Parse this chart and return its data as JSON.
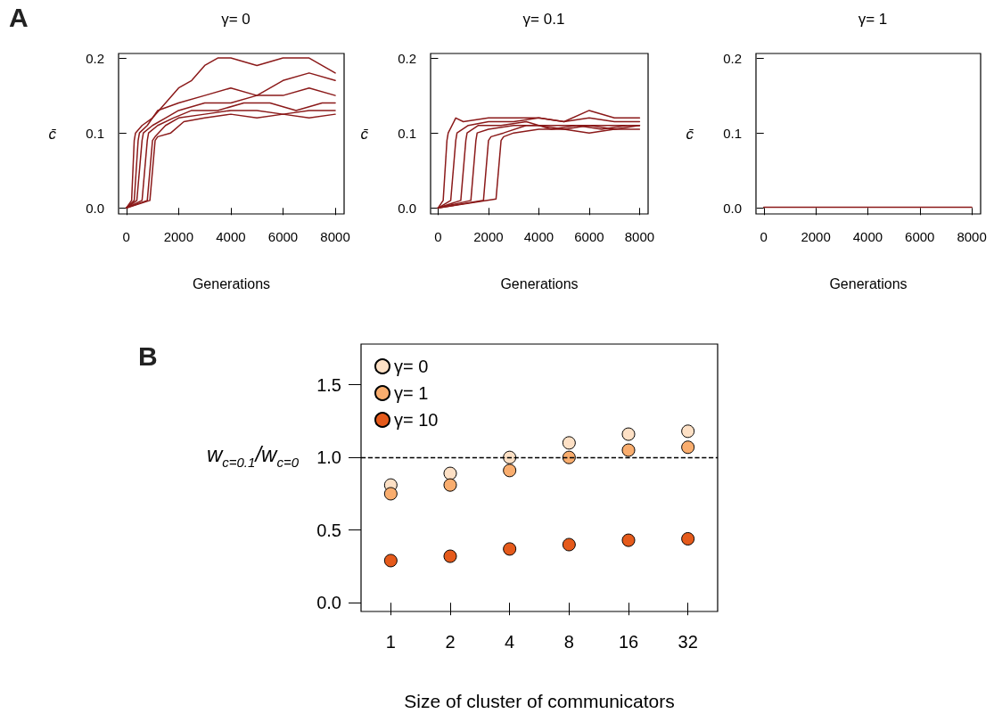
{
  "chart_data": [
    {
      "type": "line",
      "title": "γ= 0",
      "xlabel": "Generations",
      "ylabel": "c̄",
      "annotations": [
        "A"
      ],
      "marker": "none",
      "legend": false,
      "xlim": [
        -300,
        8340
      ],
      "xticks": [
        0,
        2000,
        4000,
        6000,
        8000
      ],
      "ylim": [
        -0.008,
        0.206
      ],
      "yticks": [
        {
          "value": 0,
          "label": "0.0"
        },
        {
          "value": 0.1,
          "label": "0.1"
        },
        {
          "value": 0.2,
          "label": "0.2"
        }
      ],
      "series": [
        {
          "color": "#8b1a1a",
          "x": [
            0,
            200,
            300,
            350,
            600,
            1000,
            1500,
            2000,
            2500,
            3000,
            3500,
            4000,
            5000,
            6000,
            7000,
            8000
          ],
          "values": [
            0,
            0.01,
            0.09,
            0.1,
            0.11,
            0.12,
            0.14,
            0.16,
            0.17,
            0.19,
            0.2,
            0.2,
            0.19,
            0.2,
            0.2,
            0.18
          ]
        },
        {
          "color": "#8b1a1a",
          "x": [
            0,
            300,
            450,
            500,
            800,
            1200,
            2000,
            3000,
            4000,
            5000,
            6000,
            7000,
            8000
          ],
          "values": [
            0,
            0.01,
            0.09,
            0.1,
            0.11,
            0.13,
            0.14,
            0.15,
            0.16,
            0.15,
            0.17,
            0.18,
            0.17
          ]
        },
        {
          "color": "#8b1a1a",
          "x": [
            0,
            400,
            600,
            650,
            1000,
            1500,
            2000,
            3000,
            4000,
            5000,
            6000,
            7000,
            8000
          ],
          "values": [
            0,
            0.01,
            0.09,
            0.1,
            0.11,
            0.12,
            0.13,
            0.14,
            0.14,
            0.15,
            0.15,
            0.16,
            0.15
          ]
        },
        {
          "color": "#8b1a1a",
          "x": [
            0,
            600,
            800,
            850,
            1200,
            1800,
            2500,
            3500,
            4500,
            5500,
            6500,
            7500,
            8000
          ],
          "values": [
            0,
            0.01,
            0.09,
            0.1,
            0.11,
            0.12,
            0.13,
            0.13,
            0.14,
            0.14,
            0.13,
            0.14,
            0.14
          ]
        },
        {
          "color": "#8b1a1a",
          "x": [
            0,
            800,
            1000,
            1100,
            1500,
            2000,
            3000,
            4000,
            5000,
            6000,
            7000,
            8000
          ],
          "values": [
            0,
            0.01,
            0.09,
            0.095,
            0.11,
            0.12,
            0.125,
            0.13,
            0.13,
            0.125,
            0.13,
            0.13
          ]
        },
        {
          "color": "#8b1a1a",
          "x": [
            0,
            900,
            1100,
            1200,
            1700,
            2200,
            3000,
            4000,
            5000,
            6000,
            7000,
            8000
          ],
          "values": [
            0,
            0.01,
            0.09,
            0.095,
            0.1,
            0.115,
            0.12,
            0.125,
            0.12,
            0.125,
            0.12,
            0.125
          ]
        }
      ]
    },
    {
      "type": "line",
      "title": "γ= 0.1",
      "xlabel": "Generations",
      "ylabel": "c̄",
      "marker": "none",
      "legend": false,
      "xlim": [
        -300,
        8340
      ],
      "xticks": [
        0,
        2000,
        4000,
        6000,
        8000
      ],
      "ylim": [
        -0.008,
        0.206
      ],
      "yticks": [
        {
          "value": 0,
          "label": "0.0"
        },
        {
          "value": 0.1,
          "label": "0.1"
        },
        {
          "value": 0.2,
          "label": "0.2"
        }
      ],
      "series": [
        {
          "color": "#8b1a1a",
          "x": [
            0,
            200,
            350,
            400,
            700,
            1000,
            2000,
            3000,
            4000,
            5000,
            6000,
            7000,
            8000
          ],
          "values": [
            0,
            0.01,
            0.09,
            0.1,
            0.12,
            0.115,
            0.12,
            0.12,
            0.12,
            0.115,
            0.13,
            0.12,
            0.12
          ]
        },
        {
          "color": "#8b1a1a",
          "x": [
            0,
            500,
            700,
            750,
            1200,
            2000,
            3000,
            4000,
            5000,
            6000,
            7000,
            8000
          ],
          "values": [
            0,
            0.01,
            0.09,
            0.1,
            0.11,
            0.115,
            0.115,
            0.12,
            0.115,
            0.12,
            0.115,
            0.115
          ]
        },
        {
          "color": "#8b1a1a",
          "x": [
            0,
            900,
            1100,
            1150,
            1600,
            2500,
            3500,
            4500,
            5500,
            6500,
            7500,
            8000
          ],
          "values": [
            0,
            0.01,
            0.09,
            0.1,
            0.11,
            0.11,
            0.115,
            0.105,
            0.11,
            0.11,
            0.11,
            0.11
          ]
        },
        {
          "color": "#8b1a1a",
          "x": [
            0,
            1300,
            1500,
            1550,
            2000,
            3000,
            4000,
            5000,
            6000,
            7000,
            8000
          ],
          "values": [
            0,
            0.01,
            0.09,
            0.1,
            0.105,
            0.11,
            0.11,
            0.105,
            0.11,
            0.105,
            0.11
          ]
        },
        {
          "color": "#8b1a1a",
          "x": [
            0,
            1800,
            2000,
            2100,
            2600,
            3500,
            4500,
            5500,
            6500,
            7500,
            8000
          ],
          "values": [
            0,
            0.01,
            0.09,
            0.095,
            0.1,
            0.11,
            0.11,
            0.11,
            0.105,
            0.11,
            0.11
          ]
        },
        {
          "color": "#8b1a1a",
          "x": [
            0,
            2300,
            2500,
            2600,
            3000,
            4000,
            5000,
            6000,
            7000,
            8000
          ],
          "values": [
            0,
            0.012,
            0.09,
            0.095,
            0.1,
            0.105,
            0.105,
            0.1,
            0.105,
            0.105
          ]
        }
      ]
    },
    {
      "type": "line",
      "title": "γ= 1",
      "xlabel": "Generations",
      "ylabel": "c̄",
      "marker": "none",
      "legend": false,
      "xlim": [
        -300,
        8340
      ],
      "xticks": [
        0,
        2000,
        4000,
        6000,
        8000
      ],
      "ylim": [
        -0.008,
        0.206
      ],
      "yticks": [
        {
          "value": 0,
          "label": "0.0"
        },
        {
          "value": 0.1,
          "label": "0.1"
        },
        {
          "value": 0.2,
          "label": "0.2"
        }
      ],
      "series": [
        {
          "color": "#8b1a1a",
          "x": [
            0,
            2000,
            4000,
            6000,
            8000
          ],
          "values": [
            0.001,
            0.001,
            0.001,
            0.001,
            0.001
          ]
        }
      ]
    },
    {
      "type": "scatter",
      "xlabel": "Size of cluster of communicators",
      "ylabel": "w$_{c=0.1}$/w$_{c=0}$",
      "annotations": [
        "B"
      ],
      "marker": "circle",
      "legend": "top left",
      "categories": [
        "1",
        "2",
        "4",
        "8",
        "16",
        "32"
      ],
      "ylim": [
        -0.06,
        1.78
      ],
      "yticks": [
        {
          "value": 0,
          "label": "0.0"
        },
        {
          "value": 0.5,
          "label": "0.5"
        },
        {
          "value": 1,
          "label": "1.0"
        },
        {
          "value": 1.5,
          "label": "1.5"
        }
      ],
      "ref_lines": [
        {
          "axis": "y",
          "value": 1,
          "line_style": "dashed",
          "color": "#000000"
        }
      ],
      "series": [
        {
          "name": "γ= 0",
          "color": "#fde0c5",
          "values": [
            0.81,
            0.89,
            1.0,
            1.1,
            1.16,
            1.18
          ]
        },
        {
          "name": "γ= 1",
          "color": "#f9ad6e",
          "values": [
            0.75,
            0.81,
            0.91,
            1.0,
            1.05,
            1.07
          ]
        },
        {
          "name": "γ= 10",
          "color": "#e55a1b",
          "values": [
            0.29,
            0.32,
            0.37,
            0.4,
            0.43,
            0.44
          ]
        }
      ]
    }
  ]
}
